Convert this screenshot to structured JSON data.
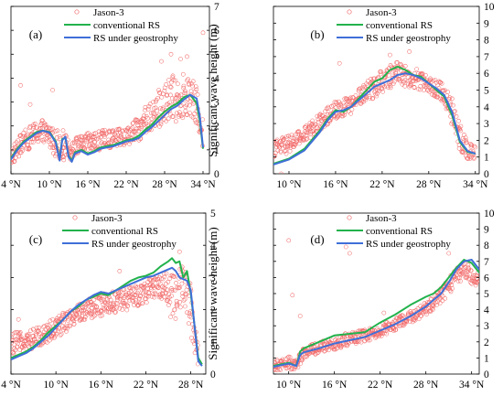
{
  "colors": {
    "observed": "#f26b6b",
    "conventional": "#22b24c",
    "geostrophy": "#3f6fd8",
    "axis": "#000000"
  },
  "chart_data": [
    {
      "type": "line",
      "panel": "(a)",
      "xticks": [
        "4 °N",
        "10 °N",
        "16 °N",
        "22 °N",
        "28 °N",
        "34 °N"
      ],
      "xtick_values": [
        4,
        10,
        16,
        22,
        28,
        34
      ],
      "xlim": [
        4,
        35
      ],
      "yticks": [
        "0",
        "1",
        "2",
        "3",
        "4",
        "5",
        "6",
        "7"
      ],
      "ylim": [
        0,
        7
      ],
      "ylabel": "",
      "legend": [
        "Jason-3",
        "conventional RS",
        "RS under geostrophy"
      ],
      "legend_position": "top-right",
      "series": [
        {
          "name": "conventional RS",
          "style": "line",
          "x": [
            4,
            5,
            6,
            7,
            8,
            9,
            10,
            11,
            11.6,
            12,
            12.5,
            13,
            13.5,
            14,
            15,
            16,
            17,
            18,
            19,
            20,
            21,
            22,
            23,
            24,
            25,
            26,
            27,
            28,
            29,
            30,
            31,
            32,
            33,
            33.5,
            34
          ],
          "y": [
            0.65,
            1.05,
            1.35,
            1.55,
            1.75,
            1.8,
            1.75,
            1.35,
            0.6,
            1.45,
            1.5,
            0.75,
            0.55,
            0.9,
            1.0,
            0.85,
            0.95,
            1.1,
            1.15,
            1.2,
            1.3,
            1.4,
            1.45,
            1.6,
            1.85,
            2.05,
            2.35,
            2.6,
            2.8,
            2.95,
            3.2,
            3.3,
            2.95,
            2.2,
            1.05
          ]
        },
        {
          "name": "RS under geostrophy",
          "style": "line",
          "x": [
            4,
            5,
            6,
            7,
            8,
            9,
            10,
            11,
            11.6,
            12,
            12.5,
            13,
            13.5,
            14,
            15,
            16,
            17,
            18,
            19,
            20,
            21,
            22,
            23,
            24,
            25,
            26,
            27,
            28,
            29,
            30,
            31,
            32,
            33,
            33.5,
            34
          ],
          "y": [
            0.6,
            1.0,
            1.3,
            1.5,
            1.7,
            1.8,
            1.72,
            1.3,
            0.55,
            1.4,
            1.55,
            0.7,
            0.5,
            0.85,
            0.95,
            0.8,
            0.9,
            1.05,
            1.1,
            1.15,
            1.25,
            1.35,
            1.4,
            1.5,
            1.75,
            1.95,
            2.2,
            2.45,
            2.7,
            2.85,
            3.1,
            3.3,
            3.15,
            2.4,
            1.1
          ]
        },
        {
          "name": "Jason-3",
          "style": "markers",
          "band": [
            [
              4,
              0.3,
              1.1
            ],
            [
              6,
              0.9,
              1.8
            ],
            [
              8,
              1.2,
              2.2
            ],
            [
              9,
              1.3,
              2.3
            ],
            [
              10,
              1.1,
              2.1
            ],
            [
              11,
              0.7,
              1.9
            ],
            [
              12,
              0.6,
              1.9
            ],
            [
              13,
              0.5,
              1.4
            ],
            [
              14,
              0.8,
              1.5
            ],
            [
              16,
              0.9,
              1.7
            ],
            [
              18,
              0.9,
              1.8
            ],
            [
              20,
              1.1,
              1.9
            ],
            [
              22,
              1.2,
              1.9
            ],
            [
              24,
              1.4,
              2.4
            ],
            [
              26,
              1.7,
              3.2
            ],
            [
              28,
              2.0,
              3.8
            ],
            [
              30,
              2.2,
              4.3
            ],
            [
              32,
              2.5,
              4.1
            ],
            [
              33,
              1.9,
              3.6
            ],
            [
              34,
              1.0,
              2.6
            ]
          ],
          "outliers": [
            [
              5.5,
              3.7
            ],
            [
              7,
              2.9
            ],
            [
              10.5,
              3.5
            ],
            [
              27.5,
              4.7
            ],
            [
              29,
              5.0
            ],
            [
              30.5,
              4.8
            ],
            [
              31.5,
              4.9
            ],
            [
              34,
              5.9
            ]
          ]
        }
      ]
    },
    {
      "type": "line",
      "panel": "(b)",
      "xticks": [
        "10 °N",
        "16 °N",
        "22 °N",
        "28 °N",
        "34 °N"
      ],
      "xtick_values": [
        10,
        16,
        22,
        28,
        34
      ],
      "xlim": [
        8,
        34.5
      ],
      "yticks": [
        "0",
        "1",
        "2",
        "3",
        "4",
        "5",
        "6",
        "7",
        "8",
        "9",
        "10"
      ],
      "ylim": [
        0,
        10
      ],
      "ylabel": "Significant wave height (m)",
      "legend": [
        "Jason-3",
        "conventional RS",
        "RS under geostrophy"
      ],
      "legend_position": "top-right",
      "series": [
        {
          "name": "conventional RS",
          "style": "line",
          "x": [
            8,
            10,
            12,
            14,
            15,
            16,
            17,
            18,
            19,
            20,
            21,
            22,
            23,
            24,
            25,
            26,
            27,
            28,
            29,
            30,
            31,
            32,
            33,
            34
          ],
          "y": [
            0.6,
            0.9,
            1.5,
            2.6,
            3.3,
            3.8,
            3.7,
            4.0,
            4.5,
            5.0,
            5.5,
            5.7,
            6.2,
            6.4,
            6.2,
            5.9,
            5.8,
            5.4,
            5.0,
            4.6,
            3.5,
            1.9,
            1.3,
            1.2
          ]
        },
        {
          "name": "RS under geostrophy",
          "style": "line",
          "x": [
            8,
            10,
            12,
            14,
            15,
            16,
            17,
            18,
            19,
            20,
            21,
            22,
            23,
            24,
            25,
            26,
            27,
            28,
            29,
            30,
            31,
            32,
            33,
            34
          ],
          "y": [
            0.55,
            0.85,
            1.4,
            2.5,
            3.2,
            3.7,
            3.8,
            4.0,
            4.4,
            4.8,
            5.2,
            5.4,
            5.6,
            5.9,
            6.0,
            5.9,
            5.7,
            5.4,
            5.1,
            4.7,
            3.7,
            2.0,
            1.35,
            1.2
          ]
        },
        {
          "name": "Jason-3",
          "style": "markers",
          "band": [
            [
              8,
              1.0,
              2.0
            ],
            [
              10,
              1.2,
              2.3
            ],
            [
              12,
              1.8,
              2.8
            ],
            [
              14,
              2.6,
              3.6
            ],
            [
              16,
              3.3,
              4.4
            ],
            [
              18,
              3.6,
              4.6
            ],
            [
              20,
              4.3,
              5.5
            ],
            [
              22,
              4.8,
              6.2
            ],
            [
              24,
              5.4,
              6.8
            ],
            [
              26,
              5.0,
              6.4
            ],
            [
              28,
              4.8,
              5.8
            ],
            [
              30,
              4.2,
              5.4
            ],
            [
              31,
              2.8,
              4.6
            ],
            [
              32,
              1.4,
              3.0
            ],
            [
              33,
              0.9,
              1.9
            ],
            [
              34,
              0.9,
              1.6
            ]
          ],
          "outliers": [
            [
              9,
              0.0
            ],
            [
              16.5,
              6.6
            ],
            [
              23,
              7.1
            ],
            [
              25.5,
              7.3
            ]
          ]
        }
      ]
    },
    {
      "type": "line",
      "panel": "(c)",
      "xticks": [
        "4 °N",
        "10 °N",
        "16 °N",
        "22 °N",
        "28 °N"
      ],
      "xtick_values": [
        4,
        10,
        16,
        22,
        28
      ],
      "xlim": [
        4,
        30
      ],
      "yticks": [
        "0",
        "1",
        "2",
        "3",
        "4",
        "5"
      ],
      "ylim": [
        0,
        5
      ],
      "ylabel": "",
      "legend": [
        "Jason-3",
        "conventional RS",
        "RS under geostrophy"
      ],
      "legend_position": "top-right",
      "series": [
        {
          "name": "conventional RS",
          "style": "line",
          "x": [
            4,
            5,
            6,
            7,
            8,
            9,
            10,
            11,
            12,
            13,
            14,
            15,
            16,
            17,
            18,
            19,
            20,
            21,
            22,
            23,
            24,
            25,
            25.5,
            26,
            26.5,
            27,
            27.5,
            28,
            29,
            29.5
          ],
          "y": [
            0.5,
            0.6,
            0.7,
            0.85,
            1.05,
            1.3,
            1.5,
            1.7,
            1.95,
            2.1,
            2.3,
            2.4,
            2.5,
            2.45,
            2.6,
            2.75,
            2.9,
            3.0,
            3.05,
            3.15,
            3.35,
            3.5,
            3.6,
            3.45,
            3.5,
            3.0,
            3.2,
            2.5,
            0.5,
            0.3
          ]
        },
        {
          "name": "RS under geostrophy",
          "style": "line",
          "x": [
            4,
            5,
            6,
            7,
            8,
            9,
            10,
            11,
            12,
            13,
            14,
            15,
            16,
            17,
            18,
            19,
            20,
            21,
            22,
            23,
            24,
            25,
            25.5,
            26,
            26.5,
            27,
            27.5,
            28,
            29,
            29.5
          ],
          "y": [
            0.45,
            0.55,
            0.65,
            0.8,
            1.0,
            1.2,
            1.45,
            1.7,
            1.95,
            2.15,
            2.3,
            2.45,
            2.55,
            2.5,
            2.6,
            2.7,
            2.8,
            2.9,
            3.0,
            3.05,
            3.15,
            3.25,
            3.3,
            3.2,
            3.0,
            2.95,
            2.9,
            2.6,
            0.4,
            0.25
          ]
        },
        {
          "name": "Jason-3",
          "style": "markers",
          "band": [
            [
              4,
              0.6,
              1.3
            ],
            [
              6,
              0.7,
              1.3
            ],
            [
              8,
              0.9,
              1.5
            ],
            [
              10,
              1.1,
              1.8
            ],
            [
              12,
              1.4,
              2.0
            ],
            [
              14,
              1.7,
              2.3
            ],
            [
              16,
              1.8,
              2.5
            ],
            [
              18,
              1.9,
              2.6
            ],
            [
              20,
              2.0,
              2.7
            ],
            [
              22,
              2.2,
              2.9
            ],
            [
              24,
              2.4,
              3.1
            ],
            [
              25,
              1.8,
              3.3
            ],
            [
              26,
              1.5,
              3.1
            ],
            [
              27,
              2.3,
              3.4
            ],
            [
              28,
              1.2,
              2.8
            ],
            [
              29,
              0.1,
              0.8
            ]
          ],
          "outliers": [
            [
              5,
              1.7
            ],
            [
              18.5,
              3.2
            ],
            [
              26.5,
              3.8
            ]
          ]
        }
      ]
    },
    {
      "type": "line",
      "panel": "(d)",
      "xticks": [
        "10 °N",
        "16 °N",
        "22 °N",
        "28 °N",
        "34 °N"
      ],
      "xtick_values": [
        10,
        16,
        22,
        28,
        34
      ],
      "xlim": [
        8,
        35
      ],
      "yticks": [
        "0",
        "1",
        "2",
        "3",
        "4",
        "5",
        "6",
        "7",
        "8",
        "9",
        "10"
      ],
      "ylim": [
        0,
        10
      ],
      "ylabel": "Significant wave height (m)",
      "legend": [
        "Jason-3",
        "conventional RS",
        "RS under geostrophy"
      ],
      "legend_position": "top-right",
      "series": [
        {
          "name": "conventional RS",
          "style": "line",
          "x": [
            8,
            9,
            10,
            11,
            11.5,
            12,
            14,
            16,
            18,
            20,
            22,
            24,
            26,
            28,
            29,
            30,
            31,
            32,
            33,
            34,
            35
          ],
          "y": [
            0.5,
            0.6,
            0.7,
            0.5,
            1.4,
            1.6,
            2.0,
            2.4,
            2.5,
            2.6,
            3.2,
            3.7,
            4.3,
            4.8,
            5.0,
            5.4,
            6.0,
            6.6,
            7.1,
            6.9,
            6.3
          ]
        },
        {
          "name": "RS under geostrophy",
          "style": "line",
          "x": [
            8,
            9,
            10,
            11,
            11.5,
            12,
            14,
            16,
            18,
            20,
            22,
            24,
            26,
            28,
            29,
            30,
            31,
            32,
            33,
            34,
            35
          ],
          "y": [
            0.45,
            0.55,
            0.65,
            0.5,
            1.2,
            1.35,
            1.6,
            1.9,
            2.1,
            2.3,
            2.7,
            3.1,
            3.6,
            4.2,
            4.6,
            5.0,
            5.7,
            6.5,
            7.0,
            7.1,
            6.5
          ]
        },
        {
          "name": "Jason-3",
          "style": "markers",
          "band": [
            [
              8,
              0.2,
              0.8
            ],
            [
              10,
              0.3,
              1.1
            ],
            [
              11,
              0.2,
              0.9
            ],
            [
              12,
              1.0,
              1.7
            ],
            [
              14,
              1.3,
              2.0
            ],
            [
              16,
              1.5,
              2.3
            ],
            [
              18,
              1.8,
              2.6
            ],
            [
              20,
              2.0,
              2.8
            ],
            [
              22,
              2.3,
              3.1
            ],
            [
              24,
              2.7,
              3.5
            ],
            [
              26,
              3.1,
              3.9
            ],
            [
              28,
              3.6,
              4.5
            ],
            [
              30,
              4.4,
              5.4
            ],
            [
              32,
              5.5,
              6.6
            ],
            [
              33,
              6.0,
              7.0
            ],
            [
              34,
              5.6,
              6.6
            ],
            [
              35,
              5.4,
              6.4
            ]
          ],
          "outliers": [
            [
              10,
              8.3
            ],
            [
              10.5,
              4.9
            ],
            [
              11.5,
              3.6
            ],
            [
              17.5,
              7.9
            ],
            [
              18,
              7.5
            ],
            [
              22.5,
              3.8
            ],
            [
              31,
              7.5
            ]
          ]
        }
      ]
    }
  ]
}
